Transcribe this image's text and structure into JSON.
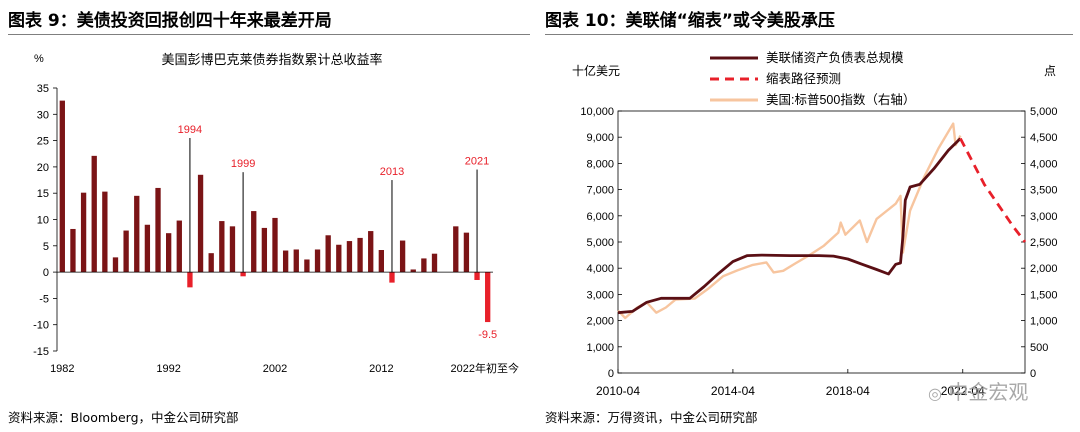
{
  "left_figure": {
    "title": "图表 9：美债投资回报创四十年来最差开局",
    "source": "资料来源：Bloomberg，中金公司研究部"
  },
  "right_figure": {
    "title": "图表 10：美联储“缩表”或令美股承压",
    "source": "资料来源：万得资讯，中金公司研究部"
  },
  "watermark": "中金宏观",
  "colors": {
    "bar": "#7b1416",
    "negative": "#e8202a",
    "highlight": "#e8202a",
    "annot_line": "#000000",
    "balance": "#5a0f14",
    "forecast": "#e8202a",
    "sp500": "#f7c59f"
  },
  "chart_data": [
    {
      "type": "bar",
      "title": "美国彭博巴克莱债券指数累计总收益率",
      "ylabel": "%",
      "ylim": [
        -15,
        35
      ],
      "yticks": [
        -15,
        -10,
        -5,
        0,
        5,
        10,
        15,
        20,
        25,
        30,
        35
      ],
      "xtick_labels": [
        "1982",
        "1992",
        "2002",
        "2012",
        "2022年初至今"
      ],
      "categories": [
        "1982",
        "1983",
        "1984",
        "1985",
        "1986",
        "1987",
        "1988",
        "1989",
        "1990",
        "1991",
        "1992",
        "1993",
        "1994",
        "1995",
        "1996",
        "1997",
        "1998",
        "1999",
        "2000",
        "2001",
        "2002",
        "2003",
        "2004",
        "2005",
        "2006",
        "2007",
        "2008",
        "2009",
        "2010",
        "2011",
        "2012",
        "2013",
        "2014",
        "2015",
        "2016",
        "2017",
        "2018",
        "2019",
        "2020",
        "2021",
        "2022年初至今"
      ],
      "values": [
        32.6,
        8.2,
        15.1,
        22.1,
        15.3,
        2.8,
        7.9,
        14.5,
        9.0,
        16.0,
        7.4,
        9.8,
        -2.9,
        18.5,
        3.6,
        9.7,
        8.7,
        -0.8,
        11.6,
        8.4,
        10.3,
        4.1,
        4.3,
        2.4,
        4.3,
        7.0,
        5.2,
        5.9,
        6.5,
        7.8,
        4.2,
        -2.0,
        6.0,
        0.5,
        2.6,
        3.5,
        0.0,
        8.7,
        7.5,
        -1.5,
        -9.5
      ],
      "annotations": [
        {
          "label": "1994",
          "category": "1994",
          "line_top": 25.5
        },
        {
          "label": "1999",
          "category": "1999",
          "line_top": 19.0
        },
        {
          "label": "2013",
          "category": "2013",
          "line_top": 17.5
        },
        {
          "label": "2021",
          "category": "2021",
          "line_top": 19.5
        },
        {
          "label": "-9.5",
          "category": "2022年初至今",
          "value": -9.5
        }
      ]
    },
    {
      "type": "line",
      "ylabel_left": "十亿美元",
      "ylabel_right": "点",
      "ylim_left": [
        0,
        10000
      ],
      "ylim_right": [
        0,
        5000
      ],
      "yticks_left": [
        "0",
        "1,000",
        "2,000",
        "3,000",
        "4,000",
        "5,000",
        "6,000",
        "7,000",
        "8,000",
        "9,000",
        "10,000"
      ],
      "yticks_right": [
        "0",
        "500",
        "1,000",
        "1,500",
        "2,000",
        "2,500",
        "3,000",
        "3,500",
        "4,000",
        "4,500",
        "5,000"
      ],
      "xtick_labels": [
        "2010-04",
        "2014-04",
        "2018-04",
        "2022-04"
      ],
      "legend_position": "top-center",
      "series": [
        {
          "name": "美联储资产负债表总规模",
          "axis": "left",
          "style": "solid",
          "x": [
            "2010-04",
            "2010-10",
            "2011-04",
            "2011-10",
            "2012-04",
            "2012-10",
            "2013-04",
            "2013-10",
            "2014-04",
            "2014-10",
            "2015-04",
            "2016-04",
            "2017-04",
            "2017-10",
            "2018-04",
            "2018-10",
            "2019-04",
            "2019-09",
            "2019-12",
            "2020-02",
            "2020-03",
            "2020-04",
            "2020-06",
            "2020-10",
            "2021-04",
            "2021-10",
            "2022-03"
          ],
          "y": [
            2300,
            2350,
            2700,
            2850,
            2850,
            2850,
            3300,
            3800,
            4250,
            4480,
            4500,
            4480,
            4480,
            4460,
            4350,
            4150,
            3950,
            3780,
            4150,
            4200,
            5200,
            6600,
            7100,
            7200,
            7800,
            8500,
            8950
          ]
        },
        {
          "name": "缩表路径预测",
          "axis": "left",
          "style": "dashed",
          "x": [
            "2022-03",
            "2023-01",
            "2024-01",
            "2024-06"
          ],
          "y": [
            8950,
            7200,
            5600,
            5000
          ]
        },
        {
          "name": "美国:标普500指数（右轴）",
          "axis": "right",
          "style": "solid",
          "x": [
            "2010-04",
            "2010-07",
            "2010-12",
            "2011-04",
            "2011-08",
            "2011-12",
            "2012-04",
            "2012-12",
            "2013-06",
            "2013-12",
            "2014-06",
            "2014-12",
            "2015-06",
            "2015-09",
            "2016-01",
            "2016-06",
            "2016-12",
            "2017-06",
            "2017-12",
            "2018-01",
            "2018-03",
            "2018-09",
            "2018-12",
            "2019-04",
            "2019-12",
            "2020-02",
            "2020-03",
            "2020-06",
            "2020-12",
            "2021-06",
            "2021-12",
            "2022-01",
            "2022-03"
          ],
          "y": [
            1190,
            1050,
            1250,
            1350,
            1150,
            1250,
            1400,
            1420,
            1620,
            1850,
            1960,
            2060,
            2110,
            1920,
            1950,
            2090,
            2250,
            2430,
            2680,
            2870,
            2640,
            2910,
            2500,
            2940,
            3230,
            3380,
            2300,
            3100,
            3750,
            4300,
            4760,
            4350,
            4530
          ]
        }
      ]
    }
  ]
}
